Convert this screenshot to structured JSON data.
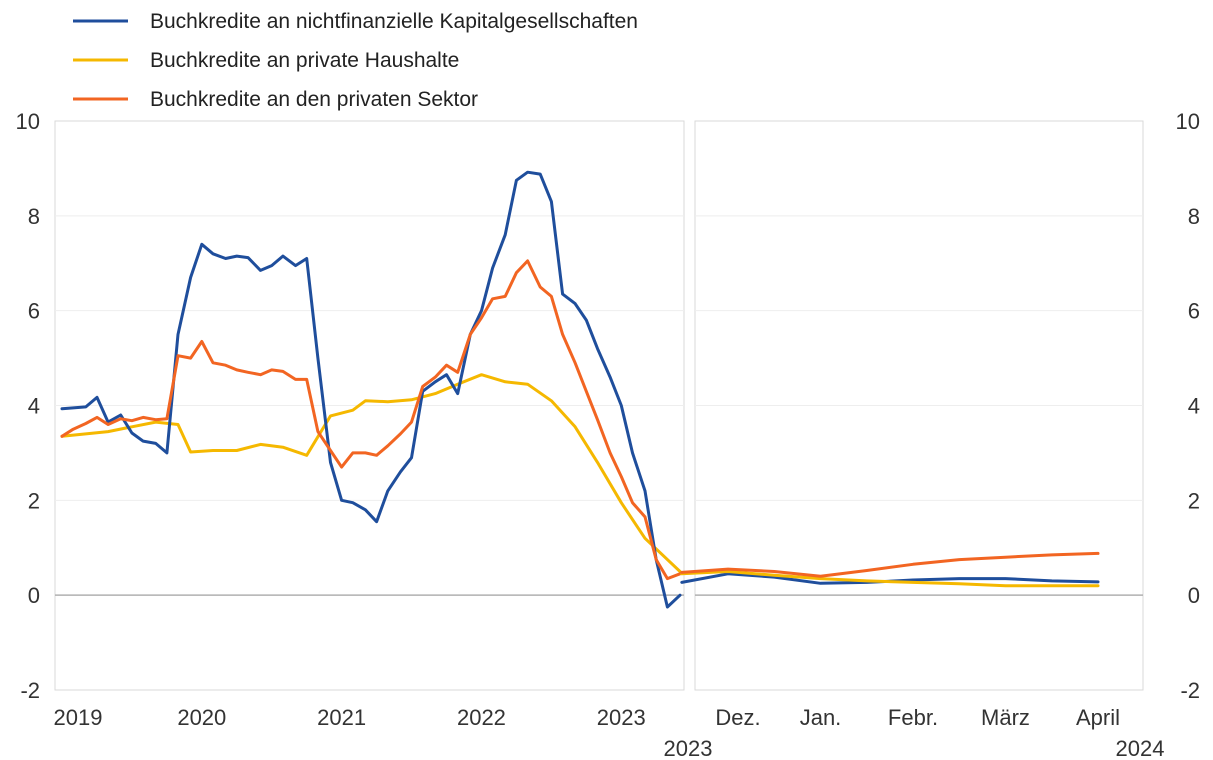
{
  "chart_data": [
    {
      "type": "line",
      "title": "",
      "xlabel": "",
      "ylabel": "",
      "ylim": [
        -2,
        10
      ],
      "yticks": [
        -2,
        0,
        2,
        4,
        6,
        8,
        10
      ],
      "x_range": [
        2019.0,
        2023.42
      ],
      "x_ticks": [
        {
          "label": "2019",
          "value": 2019.0
        },
        {
          "label": "2020",
          "value": 2020.0
        },
        {
          "label": "2021",
          "value": 2021.0
        },
        {
          "label": "2022",
          "value": 2022.0
        },
        {
          "label": "2023",
          "value": 2023.0
        }
      ],
      "grid": true,
      "legend_position": "top-left",
      "series": [
        {
          "name": "Buchkredite an nichtfinanzielle Kapitalgesellschaften",
          "color": "#1f4e9c",
          "points": [
            [
              2019.0,
              3.93
            ],
            [
              2019.08,
              3.95
            ],
            [
              2019.17,
              3.97
            ],
            [
              2019.25,
              4.17
            ],
            [
              2019.33,
              3.65
            ],
            [
              2019.42,
              3.8
            ],
            [
              2019.5,
              3.42
            ],
            [
              2019.58,
              3.25
            ],
            [
              2019.67,
              3.2
            ],
            [
              2019.75,
              3.0
            ],
            [
              2019.83,
              5.5
            ],
            [
              2019.92,
              6.7
            ],
            [
              2020.0,
              7.4
            ],
            [
              2020.08,
              7.2
            ],
            [
              2020.17,
              7.1
            ],
            [
              2020.25,
              7.15
            ],
            [
              2020.33,
              7.12
            ],
            [
              2020.42,
              6.85
            ],
            [
              2020.5,
              6.95
            ],
            [
              2020.58,
              7.15
            ],
            [
              2020.67,
              6.95
            ],
            [
              2020.75,
              7.1
            ],
            [
              2020.83,
              5.0
            ],
            [
              2020.92,
              2.8
            ],
            [
              2021.0,
              2.0
            ],
            [
              2021.08,
              1.95
            ],
            [
              2021.17,
              1.8
            ],
            [
              2021.25,
              1.55
            ],
            [
              2021.33,
              2.2
            ],
            [
              2021.42,
              2.6
            ],
            [
              2021.5,
              2.9
            ],
            [
              2021.58,
              4.3
            ],
            [
              2021.67,
              4.5
            ],
            [
              2021.75,
              4.65
            ],
            [
              2021.83,
              4.25
            ],
            [
              2021.92,
              5.5
            ],
            [
              2022.0,
              6.0
            ],
            [
              2022.08,
              6.9
            ],
            [
              2022.17,
              7.6
            ],
            [
              2022.25,
              8.75
            ],
            [
              2022.33,
              8.92
            ],
            [
              2022.42,
              8.88
            ],
            [
              2022.5,
              8.3
            ],
            [
              2022.58,
              6.35
            ],
            [
              2022.67,
              6.15
            ],
            [
              2022.75,
              5.8
            ],
            [
              2022.83,
              5.2
            ],
            [
              2022.92,
              4.6
            ],
            [
              2023.0,
              4.0
            ],
            [
              2023.08,
              3.0
            ],
            [
              2023.17,
              2.2
            ],
            [
              2023.25,
              0.75
            ],
            [
              2023.33,
              -0.25
            ],
            [
              2023.42,
              0.0
            ]
          ]
        },
        {
          "name": "Buchkredite an private Haushalte",
          "color": "#f5b800",
          "points": [
            [
              2019.0,
              3.35
            ],
            [
              2019.17,
              3.4
            ],
            [
              2019.33,
              3.45
            ],
            [
              2019.5,
              3.55
            ],
            [
              2019.67,
              3.65
            ],
            [
              2019.83,
              3.6
            ],
            [
              2019.92,
              3.02
            ],
            [
              2020.08,
              3.05
            ],
            [
              2020.25,
              3.05
            ],
            [
              2020.42,
              3.18
            ],
            [
              2020.58,
              3.12
            ],
            [
              2020.75,
              2.95
            ],
            [
              2020.92,
              3.78
            ],
            [
              2021.08,
              3.9
            ],
            [
              2021.17,
              4.1
            ],
            [
              2021.33,
              4.08
            ],
            [
              2021.5,
              4.12
            ],
            [
              2021.67,
              4.25
            ],
            [
              2021.83,
              4.45
            ],
            [
              2022.0,
              4.65
            ],
            [
              2022.17,
              4.5
            ],
            [
              2022.33,
              4.45
            ],
            [
              2022.5,
              4.1
            ],
            [
              2022.67,
              3.55
            ],
            [
              2022.83,
              2.8
            ],
            [
              2023.0,
              1.95
            ],
            [
              2023.17,
              1.2
            ],
            [
              2023.33,
              0.75
            ],
            [
              2023.42,
              0.5
            ]
          ]
        },
        {
          "name": "Buchkredite an den privaten Sektor",
          "color": "#f26522",
          "points": [
            [
              2019.0,
              3.35
            ],
            [
              2019.08,
              3.5
            ],
            [
              2019.17,
              3.62
            ],
            [
              2019.25,
              3.75
            ],
            [
              2019.33,
              3.6
            ],
            [
              2019.42,
              3.72
            ],
            [
              2019.5,
              3.68
            ],
            [
              2019.58,
              3.75
            ],
            [
              2019.67,
              3.7
            ],
            [
              2019.75,
              3.72
            ],
            [
              2019.83,
              5.05
            ],
            [
              2019.92,
              5.0
            ],
            [
              2020.0,
              5.35
            ],
            [
              2020.08,
              4.9
            ],
            [
              2020.17,
              4.85
            ],
            [
              2020.25,
              4.75
            ],
            [
              2020.33,
              4.7
            ],
            [
              2020.42,
              4.65
            ],
            [
              2020.5,
              4.75
            ],
            [
              2020.58,
              4.72
            ],
            [
              2020.67,
              4.55
            ],
            [
              2020.75,
              4.55
            ],
            [
              2020.83,
              3.45
            ],
            [
              2020.92,
              3.05
            ],
            [
              2021.0,
              2.7
            ],
            [
              2021.08,
              3.0
            ],
            [
              2021.17,
              3.0
            ],
            [
              2021.25,
              2.95
            ],
            [
              2021.33,
              3.15
            ],
            [
              2021.42,
              3.4
            ],
            [
              2021.5,
              3.65
            ],
            [
              2021.58,
              4.4
            ],
            [
              2021.67,
              4.6
            ],
            [
              2021.75,
              4.85
            ],
            [
              2021.83,
              4.7
            ],
            [
              2021.92,
              5.5
            ],
            [
              2022.0,
              5.85
            ],
            [
              2022.08,
              6.25
            ],
            [
              2022.17,
              6.3
            ],
            [
              2022.25,
              6.8
            ],
            [
              2022.33,
              7.05
            ],
            [
              2022.42,
              6.5
            ],
            [
              2022.5,
              6.3
            ],
            [
              2022.58,
              5.5
            ],
            [
              2022.67,
              4.9
            ],
            [
              2022.75,
              4.3
            ],
            [
              2022.83,
              3.7
            ],
            [
              2022.92,
              3.0
            ],
            [
              2023.0,
              2.5
            ],
            [
              2023.08,
              1.95
            ],
            [
              2023.17,
              1.65
            ],
            [
              2023.25,
              0.75
            ],
            [
              2023.33,
              0.35
            ],
            [
              2023.42,
              0.45
            ]
          ]
        }
      ]
    },
    {
      "type": "line",
      "title": "",
      "xlabel": "",
      "ylabel": "",
      "ylim": [
        -2,
        10
      ],
      "yticks": [
        -2,
        0,
        2,
        4,
        6,
        8,
        10
      ],
      "categories": [
        "Dez.",
        "Jan.",
        "Febr.",
        "März",
        "April"
      ],
      "sub_labels": {
        "left": "2023",
        "right": "2024"
      },
      "grid": true,
      "series": [
        {
          "name": "Buchkredite an nichtfinanzielle Kapitalgesellschaften",
          "color": "#1f4e9c",
          "points": [
            [
              -0.5,
              0.27
            ],
            [
              0,
              0.45
            ],
            [
              0.5,
              0.38
            ],
            [
              1,
              0.25
            ],
            [
              1.5,
              0.27
            ],
            [
              2,
              0.32
            ],
            [
              2.5,
              0.35
            ],
            [
              3,
              0.35
            ],
            [
              3.5,
              0.3
            ],
            [
              4,
              0.28
            ]
          ]
        },
        {
          "name": "Buchkredite an private Haushalte",
          "color": "#f5b800",
          "points": [
            [
              -0.5,
              0.45
            ],
            [
              0,
              0.5
            ],
            [
              0.5,
              0.42
            ],
            [
              1,
              0.35
            ],
            [
              1.5,
              0.3
            ],
            [
              2,
              0.27
            ],
            [
              2.5,
              0.24
            ],
            [
              3,
              0.2
            ],
            [
              3.5,
              0.2
            ],
            [
              4,
              0.2
            ]
          ]
        },
        {
          "name": "Buchkredite an den privaten Sektor",
          "color": "#f26522",
          "points": [
            [
              -0.5,
              0.48
            ],
            [
              0,
              0.55
            ],
            [
              0.5,
              0.5
            ],
            [
              1,
              0.4
            ],
            [
              1.5,
              0.52
            ],
            [
              2,
              0.65
            ],
            [
              2.5,
              0.75
            ],
            [
              3,
              0.8
            ],
            [
              3.5,
              0.85
            ],
            [
              4,
              0.88
            ]
          ]
        }
      ]
    }
  ]
}
